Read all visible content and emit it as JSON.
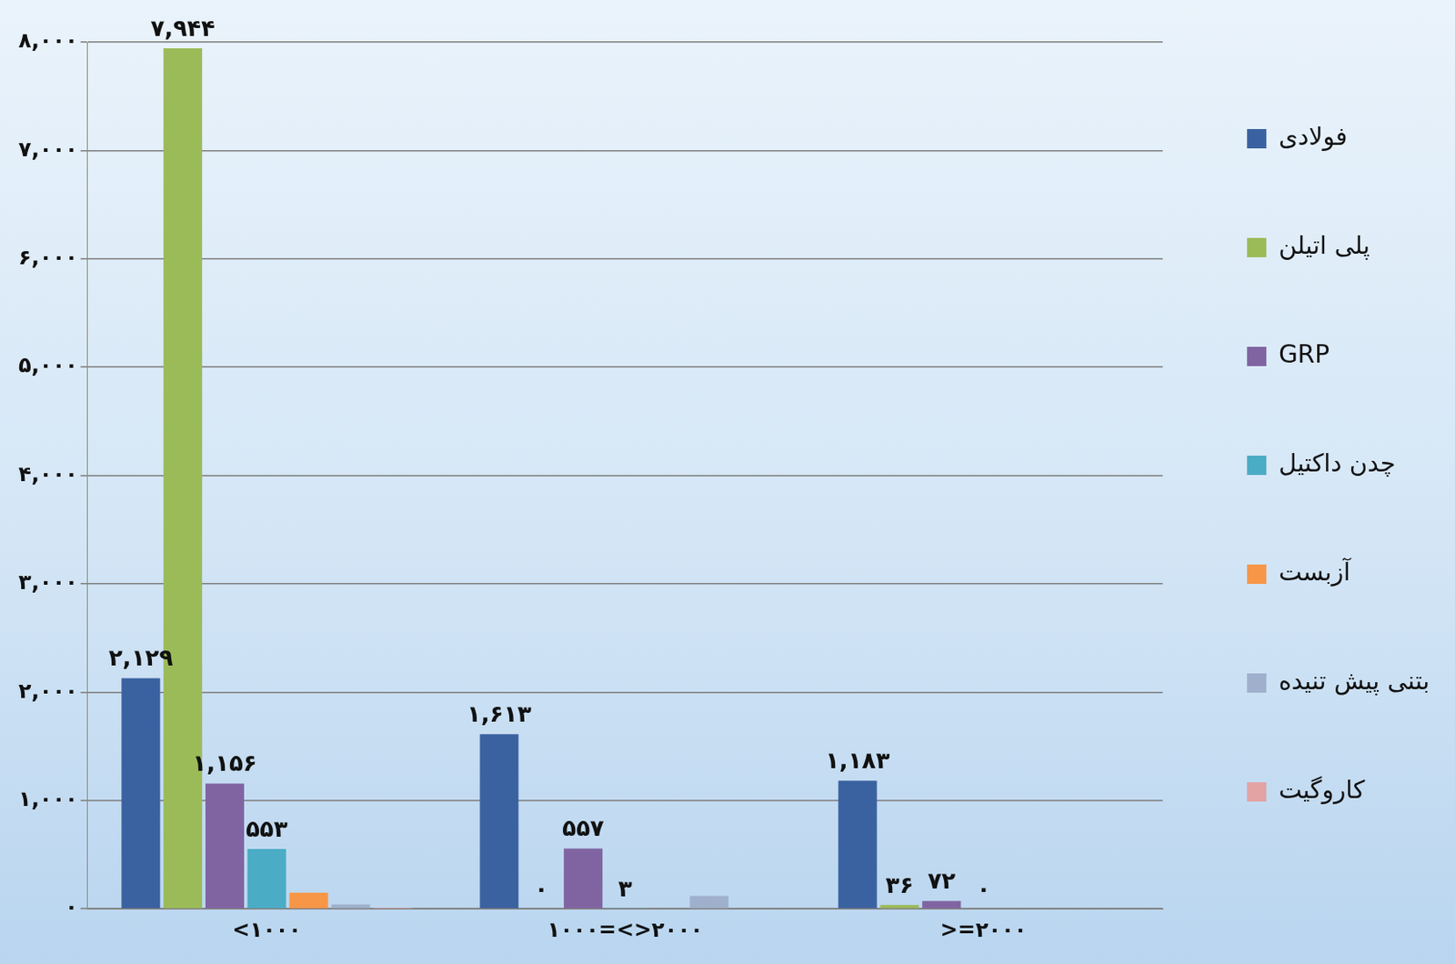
{
  "chart_data": {
    "type": "bar",
    "categories": [
      "<۱۰۰۰",
      "۱۰۰۰=<>۲۰۰۰",
      ">=۲۰۰۰"
    ],
    "series": [
      {
        "name": "فولادی",
        "color": "#3b62a0",
        "values": [
          2129,
          1613,
          1183
        ],
        "value_labels": [
          "۲,۱۲۹",
          "۱,۶۱۳",
          "۱,۱۸۳"
        ]
      },
      {
        "name": "پلی اتیلن",
        "color": "#9bbb59",
        "values": [
          7944,
          0,
          36
        ],
        "value_labels": [
          "۷,۹۴۴",
          "۰",
          "۳۶"
        ]
      },
      {
        "name": "GRP",
        "color": "#8064a2",
        "values": [
          1156,
          557,
          72
        ],
        "value_labels": [
          "۱,۱۵۶",
          "۵۵۷",
          "۷۲"
        ]
      },
      {
        "name": "چدن داکتیل",
        "color": "#4bacc6",
        "values": [
          553,
          3,
          0
        ],
        "value_labels": [
          "۵۵۳",
          "۳",
          "۰"
        ]
      },
      {
        "name": "آزبست",
        "color": "#f79646",
        "values": [
          150,
          0,
          0
        ],
        "value_labels": [
          null,
          null,
          null
        ]
      },
      {
        "name": "بتنی پیش تنیده",
        "color": "#9fb0cc",
        "values": [
          40,
          120,
          0
        ],
        "value_labels": [
          null,
          null,
          null
        ]
      },
      {
        "name": "کاروگیت",
        "color": "#e3a3a3",
        "values": [
          10,
          0,
          0
        ],
        "value_labels": [
          null,
          null,
          null
        ]
      }
    ],
    "ylim": [
      0,
      8000
    ],
    "yticks": [
      {
        "value": 0,
        "label": "۰"
      },
      {
        "value": 1000,
        "label": "۱,۰۰۰"
      },
      {
        "value": 2000,
        "label": "۲,۰۰۰"
      },
      {
        "value": 3000,
        "label": "۳,۰۰۰"
      },
      {
        "value": 4000,
        "label": "۴,۰۰۰"
      },
      {
        "value": 5000,
        "label": "۵,۰۰۰"
      },
      {
        "value": 6000,
        "label": "۶,۰۰۰"
      },
      {
        "value": 7000,
        "label": "۷,۰۰۰"
      },
      {
        "value": 8000,
        "label": "۸,۰۰۰"
      }
    ],
    "grid": true,
    "legend": "right",
    "data_labels": true
  }
}
